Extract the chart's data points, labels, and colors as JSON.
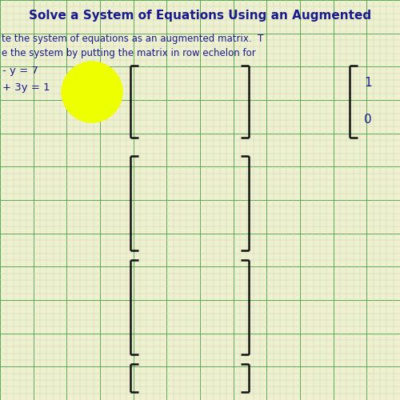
{
  "title": "Solve a System of Equations Using an Augmented",
  "subtitle1": "te the system of equations as an augmented matrix.  T",
  "subtitle2": "e the system by putting the matrix in row echelon for",
  "eq1": "- y = 7",
  "eq2": "+ 3y = 1",
  "title_color": "#1a1a8c",
  "text_color": "#1a1a8c",
  "bg_color": "#f0f0d0",
  "grid_major_color": "#55aa55",
  "grid_minor_color": "#bbddbb",
  "bracket_color": "#111111",
  "circle_color": "#eeff00",
  "figsize": [
    5.0,
    5.0
  ],
  "dpi": 100,
  "grid_minor_count": 60,
  "grid_major_every": 5,
  "title_fontsize": 11,
  "subtitle_fontsize": 8.5,
  "eq_fontsize": 9.5,
  "matrix_num_fontsize": 11
}
